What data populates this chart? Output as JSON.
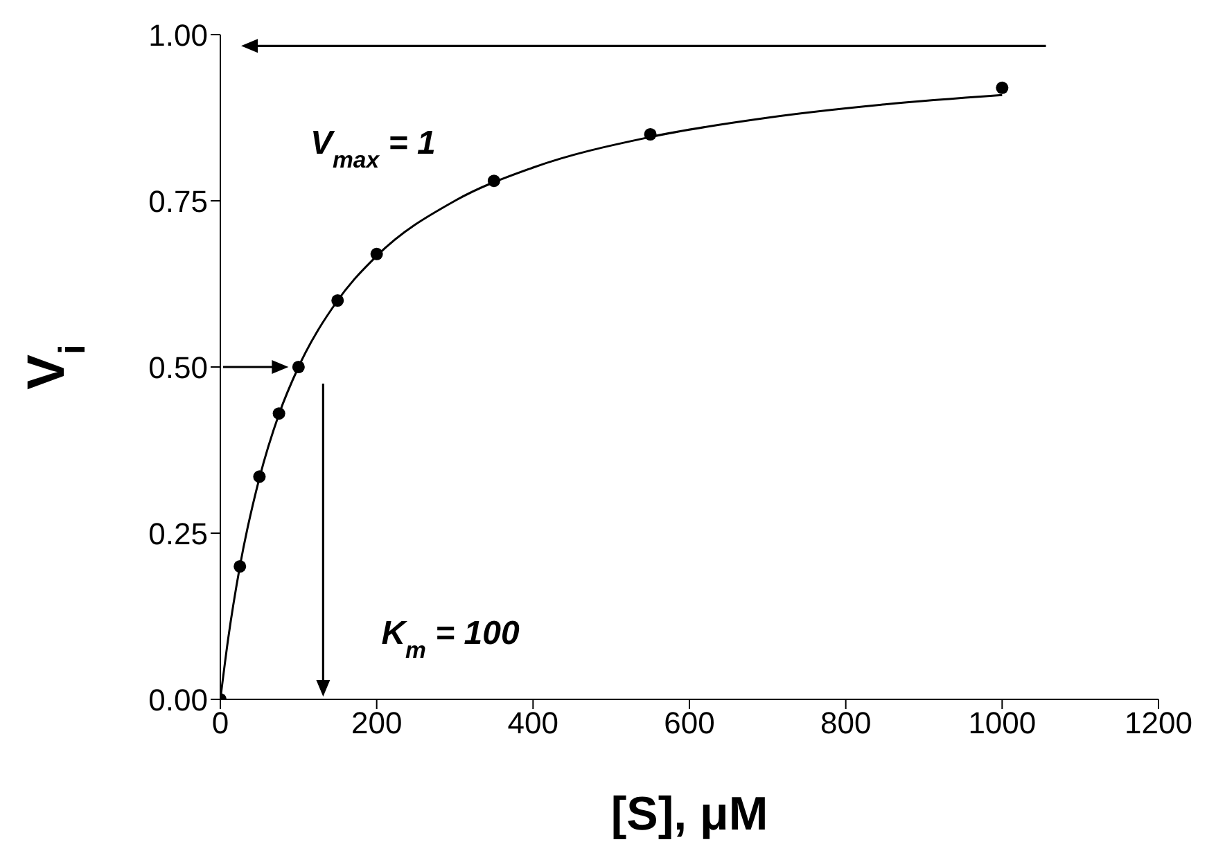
{
  "chart_data": {
    "type": "scatter",
    "xlabel": "[S], μM",
    "ylabel": "V$_{i}$",
    "xlim": [
      0,
      1200
    ],
    "xticks": [
      0,
      200,
      400,
      600,
      800,
      1000,
      1200
    ],
    "ylim": [
      0,
      1
    ],
    "yticks": [
      {
        "value": 0,
        "label": "0.00"
      },
      {
        "value": 0.25,
        "label": "0.25"
      },
      {
        "value": 0.5,
        "label": "0.50"
      },
      {
        "value": 0.75,
        "label": "0.75"
      },
      {
        "value": 1,
        "label": "1.00"
      }
    ],
    "grid": false,
    "legend": false,
    "series": [
      {
        "color": "#000000",
        "marker": "circle",
        "x": [
          0,
          25,
          50,
          75,
          100,
          150,
          200,
          350,
          550,
          1000
        ],
        "values": [
          0,
          0.2,
          0.335,
          0.43,
          0.5,
          0.6,
          0.67,
          0.78,
          0.85,
          0.92
        ]
      },
      {
        "type": "line",
        "color": "#000000",
        "marker": "none",
        "line_style": "solid",
        "x": [
          0,
          10,
          25,
          50,
          75,
          100,
          150,
          200,
          300,
          400,
          550,
          700,
          850,
          1000
        ],
        "values": [
          0,
          0.091,
          0.2,
          0.333,
          0.429,
          0.5,
          0.6,
          0.667,
          0.75,
          0.8,
          0.846,
          0.875,
          0.895,
          0.909
        ]
      }
    ],
    "annotations": [
      "V$_{max}$ = 1",
      "K$_{m}$ = 100"
    ]
  }
}
